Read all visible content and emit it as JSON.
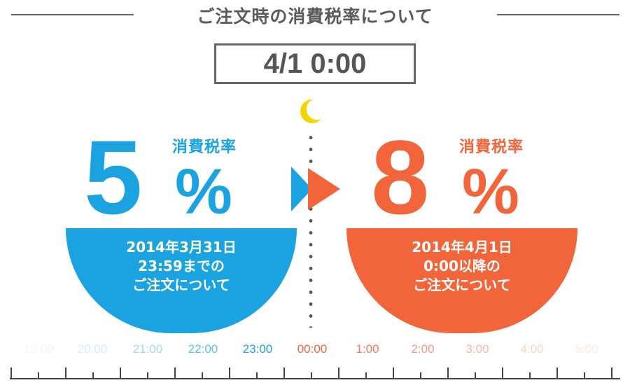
{
  "header": {
    "title": "ご注文時の消費税率について",
    "time": "4/1 0:00"
  },
  "left": {
    "label": "消費税率",
    "number": "5",
    "percent": "%",
    "lines": [
      "2014年3月31日",
      "23:59までの",
      "ご注文について"
    ],
    "color": "#1aa3e0"
  },
  "right": {
    "label": "消費税率",
    "number": "8",
    "percent": "%",
    "lines": [
      "2014年4月1日",
      "0:00以降の",
      "ご注文について"
    ],
    "color": "#f2653a"
  },
  "icons": [
    "moon-icon",
    "blue-arrow-icon",
    "orange-arrow-icon"
  ],
  "timeline": [
    {
      "label": "19:00",
      "color": "#eaf6fd"
    },
    {
      "label": "20:00",
      "color": "#d0ecfa"
    },
    {
      "label": "21:00",
      "color": "#9fd9f3"
    },
    {
      "label": "22:00",
      "color": "#5cc0ec"
    },
    {
      "label": "23:00",
      "color": "#1aa3e0"
    },
    {
      "label": "00:00",
      "color": "#f2653a"
    },
    {
      "label": "1:00",
      "color": "#f47a55"
    },
    {
      "label": "2:00",
      "color": "#f6987c"
    },
    {
      "label": "3:00",
      "color": "#f8b7a4"
    },
    {
      "label": "4:00",
      "color": "#fbd3c7"
    },
    {
      "label": "5:00",
      "color": "#fde8e2"
    }
  ]
}
